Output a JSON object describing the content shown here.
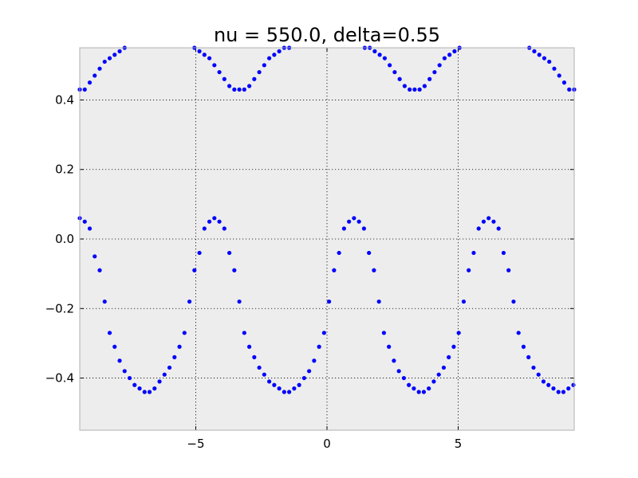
{
  "chart_data": {
    "type": "scatter",
    "title": "nu = 550.0, delta=0.55",
    "xlabel": "",
    "ylabel": "",
    "xlim": [
      -9.42,
      9.42
    ],
    "ylim": [
      -0.55,
      0.55
    ],
    "grid": true,
    "background": "#ededed",
    "marker_color": "#0000ff",
    "x_ticks": [
      {
        "value": -5,
        "label": "−5"
      },
      {
        "value": 0,
        "label": "0"
      },
      {
        "value": 5,
        "label": "5"
      }
    ],
    "y_ticks": [
      {
        "value": 0.4,
        "label": "0.4"
      },
      {
        "value": 0.2,
        "label": "0.2"
      },
      {
        "value": 0.0,
        "label": "0.0"
      },
      {
        "value": -0.2,
        "label": "−0.2"
      },
      {
        "value": -0.4,
        "label": "−0.4"
      }
    ],
    "series": [
      {
        "marker": "dot",
        "x": [
          -9.42,
          -9.23,
          -9.04,
          -8.85,
          -8.66,
          -8.47,
          -8.28,
          -8.09,
          -7.9,
          -7.71,
          -7.52,
          -7.33,
          -7.14,
          -6.95,
          -6.76,
          -6.57,
          -6.38,
          -6.19,
          -6.0,
          -5.81,
          -5.62,
          -5.43,
          -5.24,
          -5.05,
          -4.86,
          -4.67,
          -4.48,
          -4.29,
          -4.1,
          -3.91,
          -3.72,
          -3.53,
          -3.34,
          -3.15,
          -2.96,
          -2.77,
          -2.58,
          -2.39,
          -2.2,
          -2.01,
          -1.82,
          -1.63,
          -1.44,
          -1.25,
          -1.06,
          -0.87,
          -0.68,
          -0.49,
          -0.3,
          -0.11,
          0.08,
          0.27,
          0.46,
          0.65,
          0.84,
          1.03,
          1.22,
          1.41,
          1.6,
          1.79,
          1.98,
          2.17,
          2.36,
          2.55,
          2.74,
          2.93,
          3.12,
          3.31,
          3.5,
          3.69,
          3.88,
          4.07,
          4.26,
          4.45,
          4.64,
          4.83,
          5.02,
          5.21,
          5.4,
          5.59,
          5.78,
          5.97,
          6.16,
          6.35,
          6.54,
          6.73,
          6.92,
          7.11,
          7.3,
          7.49,
          7.68,
          7.87,
          8.06,
          8.25,
          8.44,
          8.63,
          8.82,
          9.01,
          9.2,
          9.39,
          -9.42,
          -9.23,
          -9.04,
          -8.85,
          -8.66,
          -8.47,
          -8.28,
          -8.09,
          -7.9,
          -7.71,
          -5.05,
          -4.86,
          -4.67,
          -4.48,
          -4.29,
          -4.1,
          -3.91,
          -3.72,
          -3.53,
          -3.34,
          -3.15,
          -2.96,
          -2.77,
          -2.58,
          -2.39,
          -2.2,
          -2.01,
          -1.82,
          -1.63,
          -1.44,
          1.44,
          1.63,
          1.82,
          2.01,
          2.2,
          2.39,
          2.58,
          2.77,
          2.96,
          3.15,
          3.34,
          3.53,
          3.72,
          3.91,
          4.1,
          4.29,
          4.48,
          4.67,
          4.86,
          5.05,
          7.71,
          7.9,
          8.09,
          8.28,
          8.47,
          8.66,
          8.85,
          9.04,
          9.23,
          9.42
        ],
        "y": [
          0.06,
          0.05,
          0.03,
          -0.05,
          -0.09,
          -0.18,
          -0.27,
          -0.31,
          -0.35,
          -0.38,
          -0.4,
          -0.42,
          -0.43,
          -0.44,
          -0.44,
          -0.43,
          -0.41,
          -0.39,
          -0.37,
          -0.34,
          -0.31,
          -0.27,
          -0.18,
          -0.09,
          -0.04,
          0.03,
          0.05,
          0.06,
          0.05,
          0.03,
          -0.04,
          -0.09,
          -0.18,
          -0.27,
          -0.31,
          -0.34,
          -0.37,
          -0.39,
          -0.41,
          -0.42,
          -0.43,
          -0.44,
          -0.44,
          -0.43,
          -0.42,
          -0.4,
          -0.38,
          -0.35,
          -0.31,
          -0.27,
          -0.18,
          -0.09,
          -0.04,
          0.03,
          0.05,
          0.06,
          0.05,
          0.03,
          -0.04,
          -0.09,
          -0.18,
          -0.27,
          -0.31,
          -0.35,
          -0.38,
          -0.4,
          -0.42,
          -0.43,
          -0.44,
          -0.44,
          -0.43,
          -0.41,
          -0.39,
          -0.37,
          -0.34,
          -0.31,
          -0.27,
          -0.18,
          -0.09,
          -0.04,
          0.03,
          0.05,
          0.06,
          0.05,
          0.03,
          -0.04,
          -0.09,
          -0.18,
          -0.27,
          -0.31,
          -0.34,
          -0.37,
          -0.39,
          -0.41,
          -0.42,
          -0.43,
          -0.44,
          -0.44,
          -0.43,
          -0.42,
          0.43,
          0.43,
          0.45,
          0.47,
          0.49,
          0.51,
          0.52,
          0.53,
          0.54,
          0.55,
          0.55,
          0.54,
          0.53,
          0.52,
          0.5,
          0.48,
          0.46,
          0.44,
          0.43,
          0.43,
          0.43,
          0.44,
          0.46,
          0.48,
          0.5,
          0.52,
          0.53,
          0.54,
          0.55,
          0.55,
          0.55,
          0.55,
          0.54,
          0.53,
          0.52,
          0.5,
          0.48,
          0.46,
          0.44,
          0.43,
          0.43,
          0.43,
          0.44,
          0.46,
          0.48,
          0.5,
          0.52,
          0.53,
          0.54,
          0.55,
          0.55,
          0.54,
          0.53,
          0.52,
          0.51,
          0.49,
          0.47,
          0.45,
          0.43,
          0.43
        ]
      }
    ]
  }
}
